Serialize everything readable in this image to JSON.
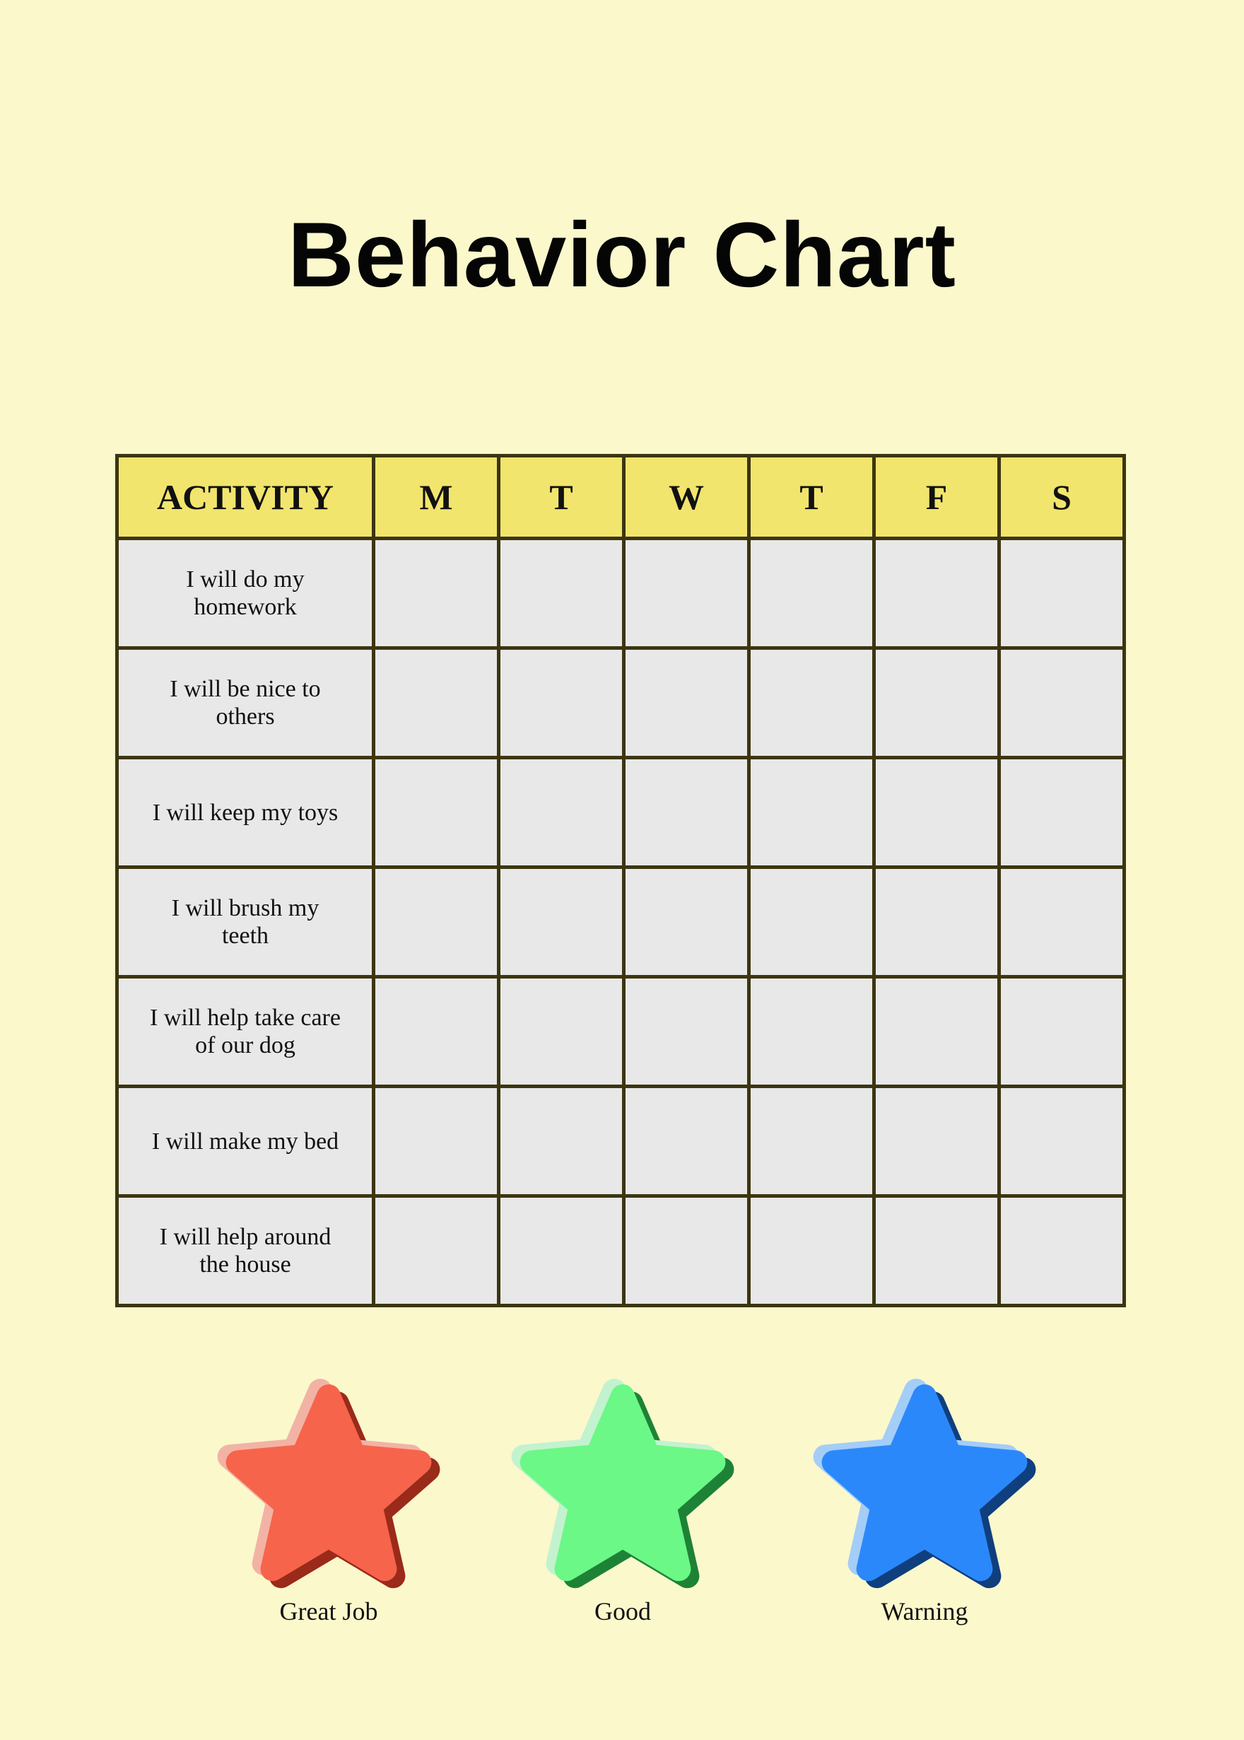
{
  "title": "Behavior Chart",
  "table": {
    "headers": [
      "ACTIVITY",
      "M",
      "T",
      "W",
      "T",
      "F",
      "S"
    ],
    "rows": [
      {
        "activity": "I will do my homework",
        "marks": [
          "",
          "",
          "",
          "",
          "",
          ""
        ]
      },
      {
        "activity": "I will be nice to others",
        "marks": [
          "",
          "",
          "",
          "",
          "",
          ""
        ]
      },
      {
        "activity": "I will keep my toys",
        "marks": [
          "",
          "",
          "",
          "",
          "",
          ""
        ]
      },
      {
        "activity": "I will brush my teeth",
        "marks": [
          "",
          "",
          "",
          "",
          "",
          ""
        ]
      },
      {
        "activity": "I will help take care of our dog",
        "marks": [
          "",
          "",
          "",
          "",
          "",
          ""
        ]
      },
      {
        "activity": "I will make my bed",
        "marks": [
          "",
          "",
          "",
          "",
          "",
          ""
        ]
      },
      {
        "activity": "I will help around the house",
        "marks": [
          "",
          "",
          "",
          "",
          "",
          ""
        ]
      }
    ]
  },
  "legend": [
    {
      "label": "Great Job",
      "icon": "star-icon",
      "colors": {
        "main": "#f6644b",
        "light": "#f2b3a5",
        "dark": "#9a2a1a"
      }
    },
    {
      "label": "Good",
      "icon": "star-icon",
      "colors": {
        "main": "#6bf887",
        "light": "#c3f2cf",
        "dark": "#1e8236"
      }
    },
    {
      "label": "Warning",
      "icon": "star-icon",
      "colors": {
        "main": "#2b88fa",
        "light": "#a4cdf8",
        "dark": "#103f7e"
      }
    }
  ],
  "colors": {
    "background": "#fbf8cc",
    "header": "#f2e56d",
    "cell": "#e8e8e8",
    "border": "#3c3510"
  }
}
